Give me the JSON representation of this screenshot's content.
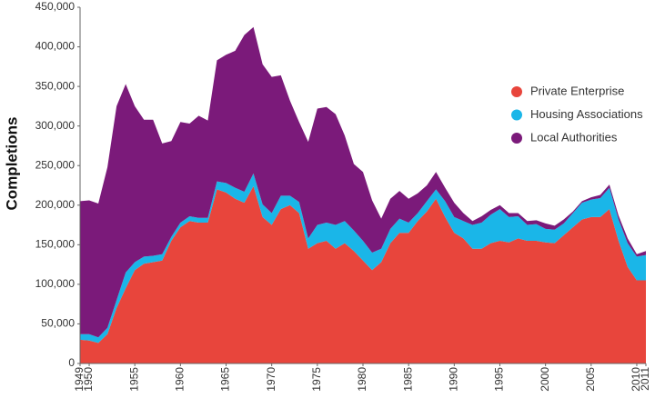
{
  "chart_data": {
    "type": "stacked_area",
    "y_label": "Completions",
    "x": [
      1949,
      1950,
      1951,
      1952,
      1953,
      1954,
      1955,
      1956,
      1957,
      1958,
      1959,
      1960,
      1961,
      1962,
      1963,
      1964,
      1965,
      1966,
      1967,
      1968,
      1969,
      1970,
      1971,
      1972,
      1973,
      1974,
      1975,
      1976,
      1977,
      1978,
      1979,
      1980,
      1981,
      1982,
      1983,
      1984,
      1985,
      1986,
      1987,
      1988,
      1989,
      1990,
      1991,
      1992,
      1993,
      1994,
      1995,
      1996,
      1997,
      1998,
      1999,
      2000,
      2001,
      2002,
      2003,
      2004,
      2005,
      2006,
      2007,
      2008,
      2009,
      2010,
      2011
    ],
    "series": [
      {
        "name": "Private Enterprise",
        "color": "#e8453c",
        "values": [
          30000,
          29000,
          26000,
          37000,
          70000,
          95000,
          118000,
          126000,
          128000,
          130000,
          155000,
          172000,
          180000,
          178000,
          178000,
          220000,
          216000,
          208000,
          203000,
          224000,
          185000,
          175000,
          195000,
          200000,
          190000,
          145000,
          152000,
          155000,
          145000,
          152000,
          142000,
          130000,
          118000,
          128000,
          152000,
          165000,
          165000,
          180000,
          192000,
          208000,
          185000,
          165000,
          158000,
          145000,
          145000,
          152000,
          155000,
          153000,
          158000,
          155000,
          155000,
          153000,
          152000,
          162000,
          172000,
          182000,
          185000,
          185000,
          195000,
          155000,
          122000,
          105000,
          105000
        ]
      },
      {
        "name": "Housing Associations",
        "color": "#1ab6e8",
        "values": [
          7000,
          8000,
          7000,
          8000,
          10000,
          20000,
          10000,
          9000,
          8000,
          8000,
          5000,
          6000,
          6000,
          6000,
          6000,
          10000,
          12000,
          14000,
          14000,
          16000,
          16000,
          15000,
          17000,
          12000,
          14000,
          13000,
          23000,
          23000,
          30000,
          28000,
          26000,
          25000,
          22000,
          17000,
          18000,
          18000,
          13000,
          10000,
          13000,
          12000,
          20000,
          20000,
          22000,
          30000,
          33000,
          36000,
          40000,
          32000,
          28000,
          20000,
          21000,
          17000,
          17000,
          15000,
          18000,
          21000,
          22000,
          24000,
          27000,
          27000,
          30000,
          30000,
          32000
        ]
      },
      {
        "name": "Local Authorities",
        "color": "#7b1a7a",
        "values": [
          168000,
          169000,
          169000,
          203000,
          245000,
          238000,
          197000,
          173000,
          172000,
          140000,
          121000,
          127000,
          117000,
          129000,
          123000,
          153000,
          162000,
          173000,
          198000,
          185000,
          177000,
          172000,
          152000,
          120000,
          101000,
          122000,
          147000,
          146000,
          140000,
          108000,
          84000,
          87000,
          66000,
          38000,
          38000,
          35000,
          30000,
          25000,
          20000,
          22000,
          17000,
          18000,
          10000,
          5000,
          8000,
          6000,
          5000,
          5000,
          4000,
          5000,
          5000,
          7000,
          5000,
          5000,
          2000,
          2000,
          3000,
          4000,
          4000,
          5000,
          6000,
          3000,
          5000
        ]
      }
    ],
    "xlim": [
      1949,
      2011
    ],
    "xticks": [
      1949,
      1950,
      1955,
      1960,
      1965,
      1970,
      1975,
      1980,
      1985,
      1990,
      1995,
      2000,
      2005,
      2010,
      2011
    ],
    "ylim": [
      0,
      450000
    ],
    "yticks": [
      0,
      {
        "value": 50000,
        "label": "50,000"
      },
      {
        "value": 100000,
        "label": "100,000"
      },
      {
        "value": 150000,
        "label": "150,000"
      },
      {
        "value": 200000,
        "label": "200,000"
      },
      {
        "value": 250000,
        "label": "250,000"
      },
      {
        "value": 300000,
        "label": "300,000"
      },
      {
        "value": 350000,
        "label": "350,000"
      },
      {
        "value": 400000,
        "label": "400,000"
      },
      {
        "value": 450000,
        "label": "450,000"
      }
    ],
    "legend": "right"
  }
}
